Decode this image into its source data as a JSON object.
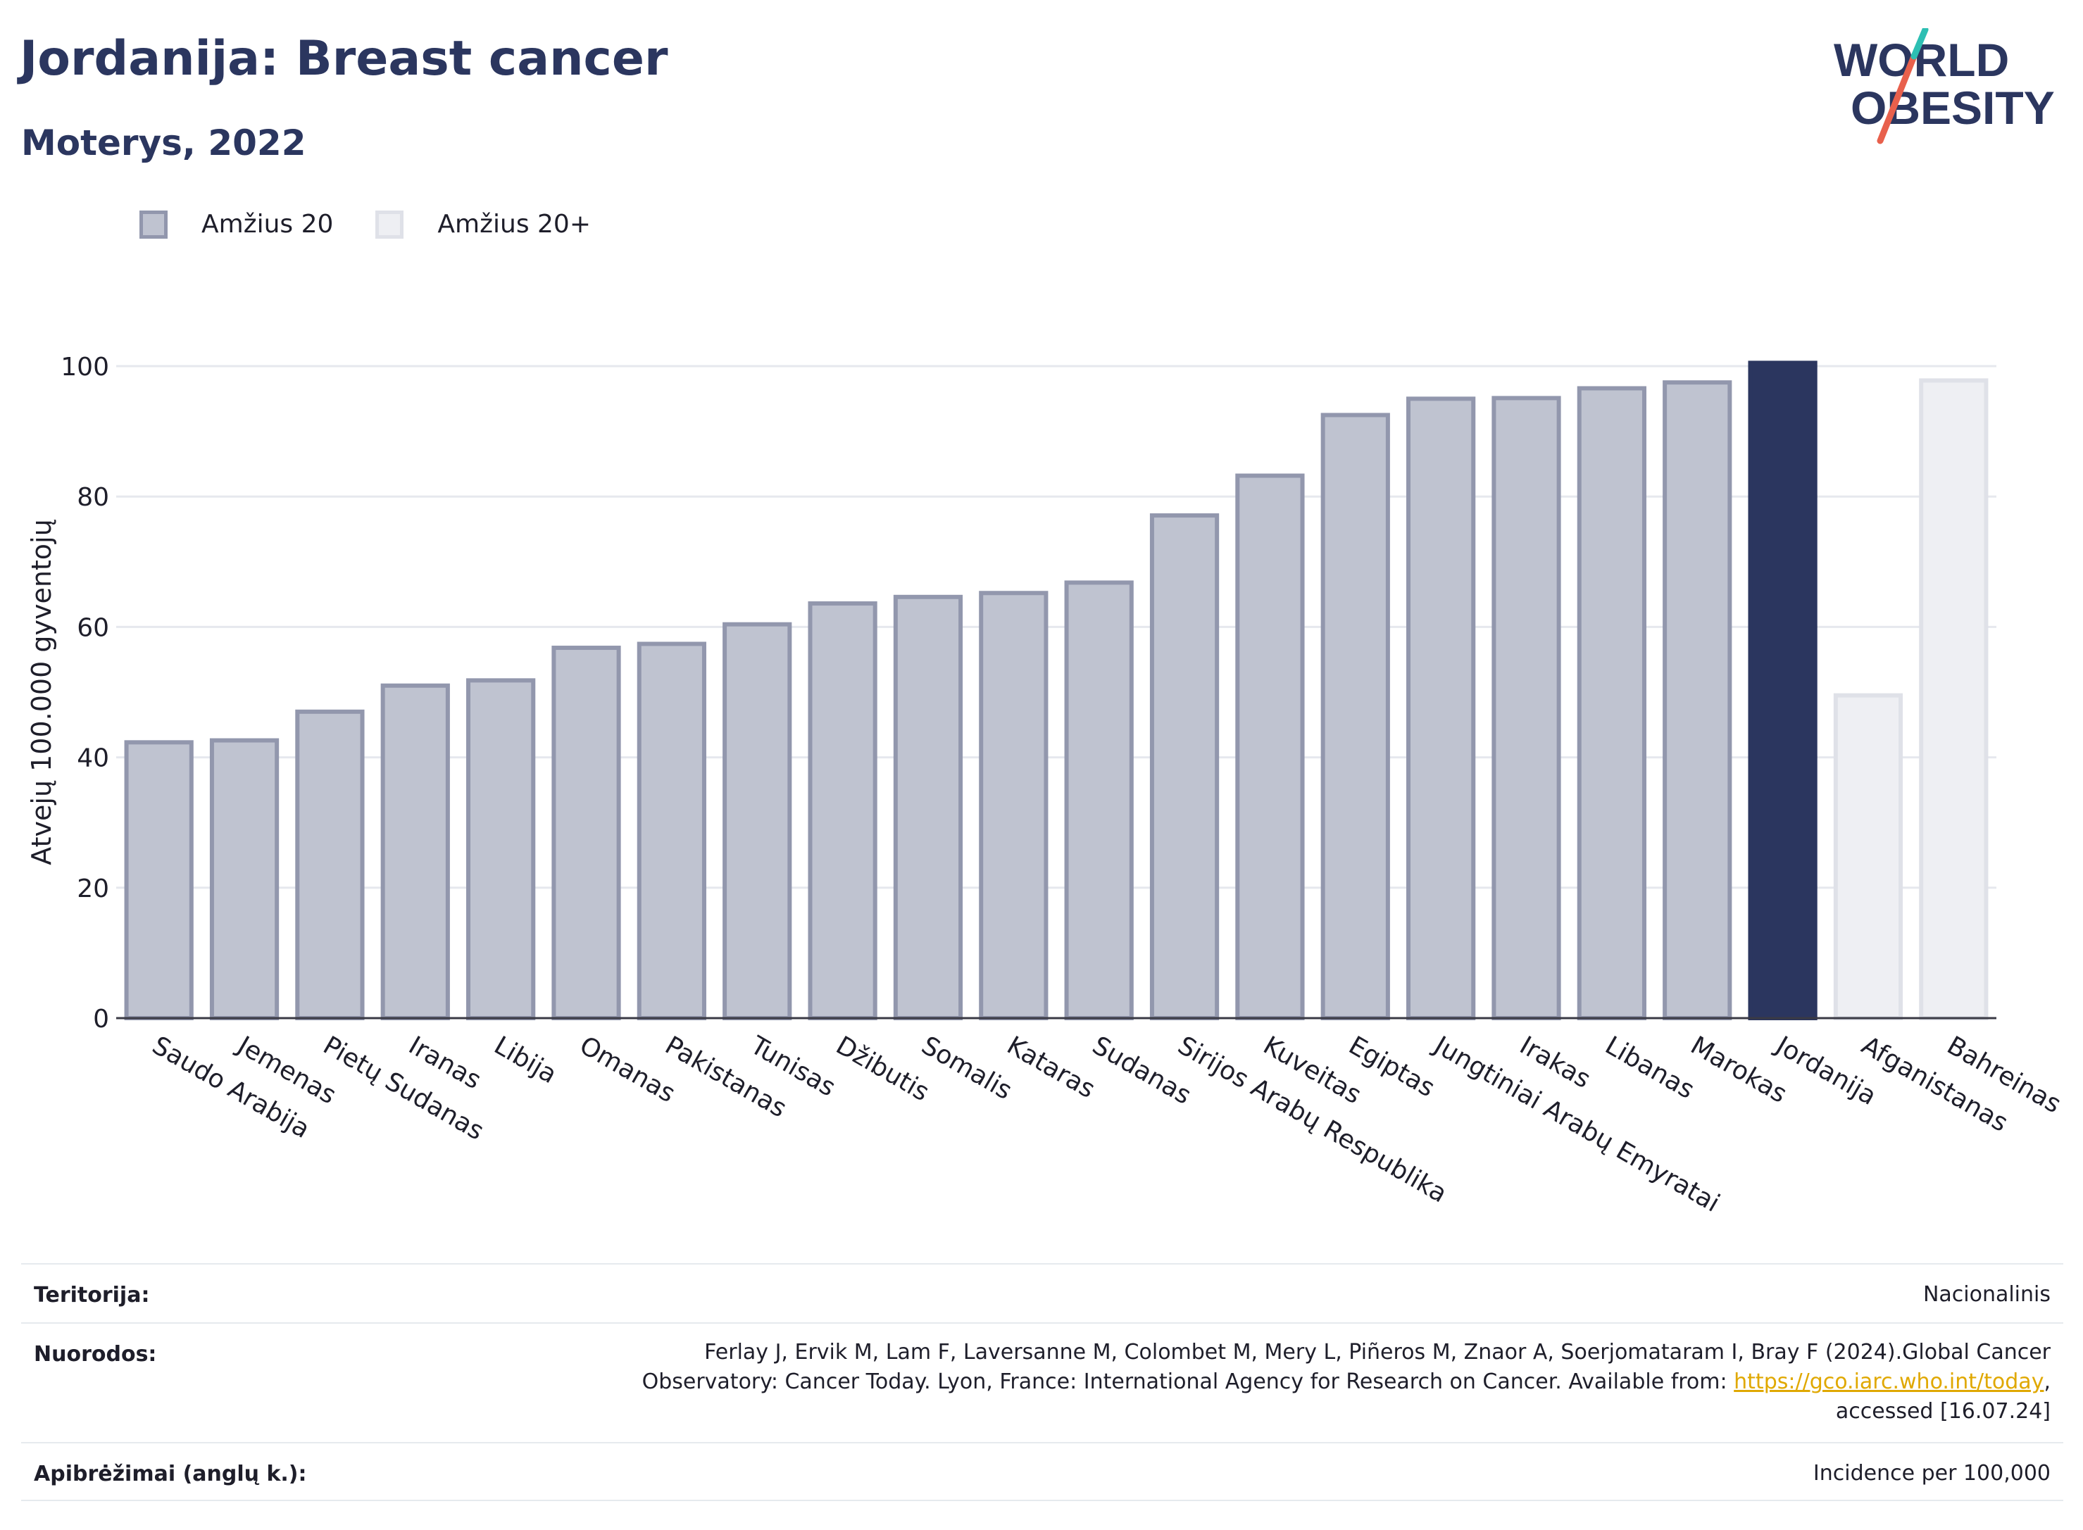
{
  "header": {
    "title": "Jordanija: Breast cancer",
    "subtitle": "Moterys, 2022"
  },
  "logo": {
    "line1": "WORLD",
    "line2": "OBESITY"
  },
  "legend": [
    {
      "label": "Amžius 20",
      "color": "#bfc3d0",
      "border": "#9297ad"
    },
    {
      "label": "Amžius 20+",
      "color": "#eeeff3",
      "border": "#dfe1e8"
    }
  ],
  "chart_data": {
    "type": "bar",
    "ylabel": "Atvejų 100.000 gyventojų",
    "ylim": [
      0,
      100
    ],
    "yticks": [
      0,
      20,
      40,
      60,
      80,
      100
    ],
    "grid": true,
    "legend_position": "top-left",
    "categories": [
      "Saudo Arabija",
      "Jemenas",
      "Pietų Sudanas",
      "Iranas",
      "Libija",
      "Omanas",
      "Pakistanas",
      "Tunisas",
      "Džibutis",
      "Somalis",
      "Kataras",
      "Sudanas",
      "Sirijos Arabų Respublika",
      "Kuveitas",
      "Egiptas",
      "Jungtiniai Arabų Emyratai",
      "Irakas",
      "Libanas",
      "Marokas",
      "Jordanija",
      "Afganistanas",
      "Bahreinas"
    ],
    "values": [
      42.3,
      42.6,
      47.0,
      51.0,
      51.8,
      56.8,
      57.4,
      60.4,
      63.6,
      64.6,
      65.2,
      66.8,
      77.1,
      83.2,
      92.5,
      95.0,
      95.1,
      96.6,
      97.5,
      100.5,
      49.5,
      97.8
    ],
    "series_index": [
      0,
      0,
      0,
      0,
      0,
      0,
      0,
      0,
      0,
      0,
      0,
      0,
      0,
      0,
      0,
      0,
      0,
      0,
      0,
      0,
      1,
      1
    ],
    "highlight": "Jordanija",
    "colors": {
      "series0_fill": "#bfc3d0",
      "series0_border": "#9297ad",
      "series1_fill": "#eeeff3",
      "series1_border": "#dfe1e8",
      "highlight": "#2b365f",
      "grid": "#e6e8ee",
      "axis": "#3a3a44"
    }
  },
  "info": {
    "territory_label": "Teritorija:",
    "territory_value": "Nacionalinis",
    "references_label": "Nuorodos:",
    "references_line1": "Ferlay J, Ervik M, Lam F, Laversanne M, Colombet M, Mery L, Piñeros M, Znaor A, Soerjomataram I, Bray F (2024).Global Cancer",
    "references_line2_pre": "Observatory: Cancer Today. Lyon, France: International Agency for Research on Cancer. Available from: ",
    "references_link": "https://gco.iarc.who.int/today",
    "references_line2_post": ",",
    "references_line3": "accessed [16.07.24]",
    "definitions_label": "Apibrėžimai (anglų k.):",
    "definitions_value": "Incidence per 100,000"
  }
}
